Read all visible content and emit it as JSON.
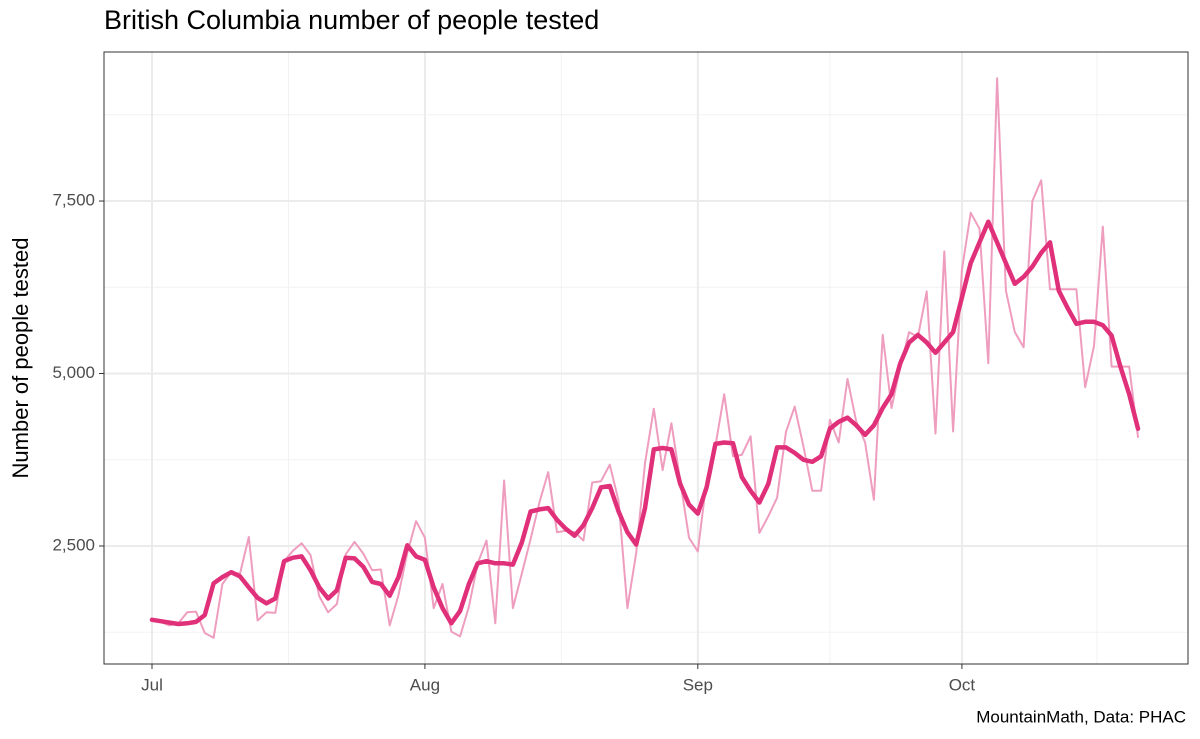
{
  "chart_data": {
    "type": "line",
    "title": "British Columbia number of people tested",
    "y_label": "Number of people tested",
    "caption": "MountainMath, Data: PHAC",
    "categories": [
      "Jul",
      null,
      null,
      null,
      null,
      null,
      null,
      null,
      null,
      null,
      null,
      null,
      null,
      null,
      null,
      null,
      null,
      null,
      null,
      null,
      null,
      null,
      null,
      null,
      null,
      null,
      null,
      null,
      null,
      null,
      null,
      "Aug",
      null,
      null,
      null,
      null,
      null,
      null,
      null,
      null,
      null,
      null,
      null,
      null,
      null,
      null,
      null,
      null,
      null,
      null,
      null,
      null,
      null,
      null,
      null,
      null,
      null,
      null,
      null,
      null,
      null,
      null,
      "Sep",
      null,
      null,
      null,
      null,
      null,
      null,
      null,
      null,
      null,
      null,
      null,
      null,
      null,
      null,
      null,
      null,
      null,
      null,
      null,
      null,
      null,
      null,
      null,
      null,
      null,
      null,
      null,
      null,
      null,
      "Oct",
      null,
      null,
      null,
      null,
      null,
      null,
      null,
      null,
      null,
      null,
      null,
      null,
      null,
      null,
      null,
      null,
      null,
      null,
      null,
      null
    ],
    "series": [
      {
        "color": "#ef9dbf",
        "values": [
          1430,
          1400,
          1350,
          1380,
          1540,
          1550,
          1240,
          1170,
          1950,
          2120,
          2100,
          2630,
          1420,
          1540,
          1530,
          2280,
          2430,
          2540,
          2370,
          1770,
          1540,
          1660,
          2380,
          2560,
          2390,
          2150,
          2160,
          1350,
          1790,
          2400,
          2860,
          2620,
          1600,
          1950,
          1260,
          1190,
          1620,
          2250,
          2580,
          1380,
          3450,
          1600,
          2100,
          2600,
          3130,
          3570,
          2700,
          2720,
          2700,
          2580,
          3420,
          3440,
          3680,
          3150,
          1600,
          2400,
          3700,
          4490,
          3600,
          4280,
          3450,
          2620,
          2420,
          3450,
          3950,
          4700,
          3800,
          3820,
          4090,
          2690,
          2930,
          3200,
          4150,
          4520,
          3940,
          3300,
          3300,
          4330,
          4000,
          4920,
          4300,
          4000,
          3170,
          5560,
          4500,
          5100,
          5600,
          5530,
          6190,
          4130,
          6770,
          4160,
          6500,
          7330,
          7100,
          5150,
          9280,
          6200,
          5600,
          5380,
          7500,
          7800,
          6220,
          6220,
          6220,
          6220,
          4800,
          5400,
          7130,
          5100,
          5100,
          5100,
          4080
        ]
      },
      {
        "color": "#e0307a",
        "values": [
          1430,
          1410,
          1390,
          1370,
          1380,
          1400,
          1500,
          1960,
          2050,
          2120,
          2060,
          1900,
          1750,
          1670,
          1740,
          2280,
          2330,
          2350,
          2150,
          1900,
          1740,
          1860,
          2330,
          2320,
          2200,
          1980,
          1950,
          1780,
          2050,
          2510,
          2350,
          2300,
          1900,
          1600,
          1380,
          1560,
          1950,
          2250,
          2280,
          2250,
          2250,
          2230,
          2550,
          3000,
          3030,
          3050,
          2880,
          2750,
          2650,
          2800,
          3050,
          3350,
          3370,
          3000,
          2700,
          2520,
          3050,
          3900,
          3920,
          3900,
          3400,
          3100,
          2970,
          3350,
          3980,
          4000,
          3990,
          3500,
          3300,
          3130,
          3400,
          3930,
          3930,
          3850,
          3750,
          3720,
          3800,
          4200,
          4300,
          4360,
          4250,
          4110,
          4250,
          4500,
          4700,
          5150,
          5450,
          5560,
          5450,
          5300,
          5450,
          5600,
          6100,
          6600,
          6900,
          7200,
          6900,
          6600,
          6300,
          6400,
          6550,
          6750,
          6900,
          6200,
          5950,
          5720,
          5750,
          5750,
          5700,
          5550,
          5100,
          4700,
          4200
        ]
      }
    ],
    "ylim": [
      790,
      9660
    ],
    "yticks": [
      {
        "value": 2500,
        "label": "2,500"
      },
      {
        "value": 5000,
        "label": "5,000"
      },
      {
        "value": 7500,
        "label": "7,500"
      }
    ],
    "grid": true
  }
}
